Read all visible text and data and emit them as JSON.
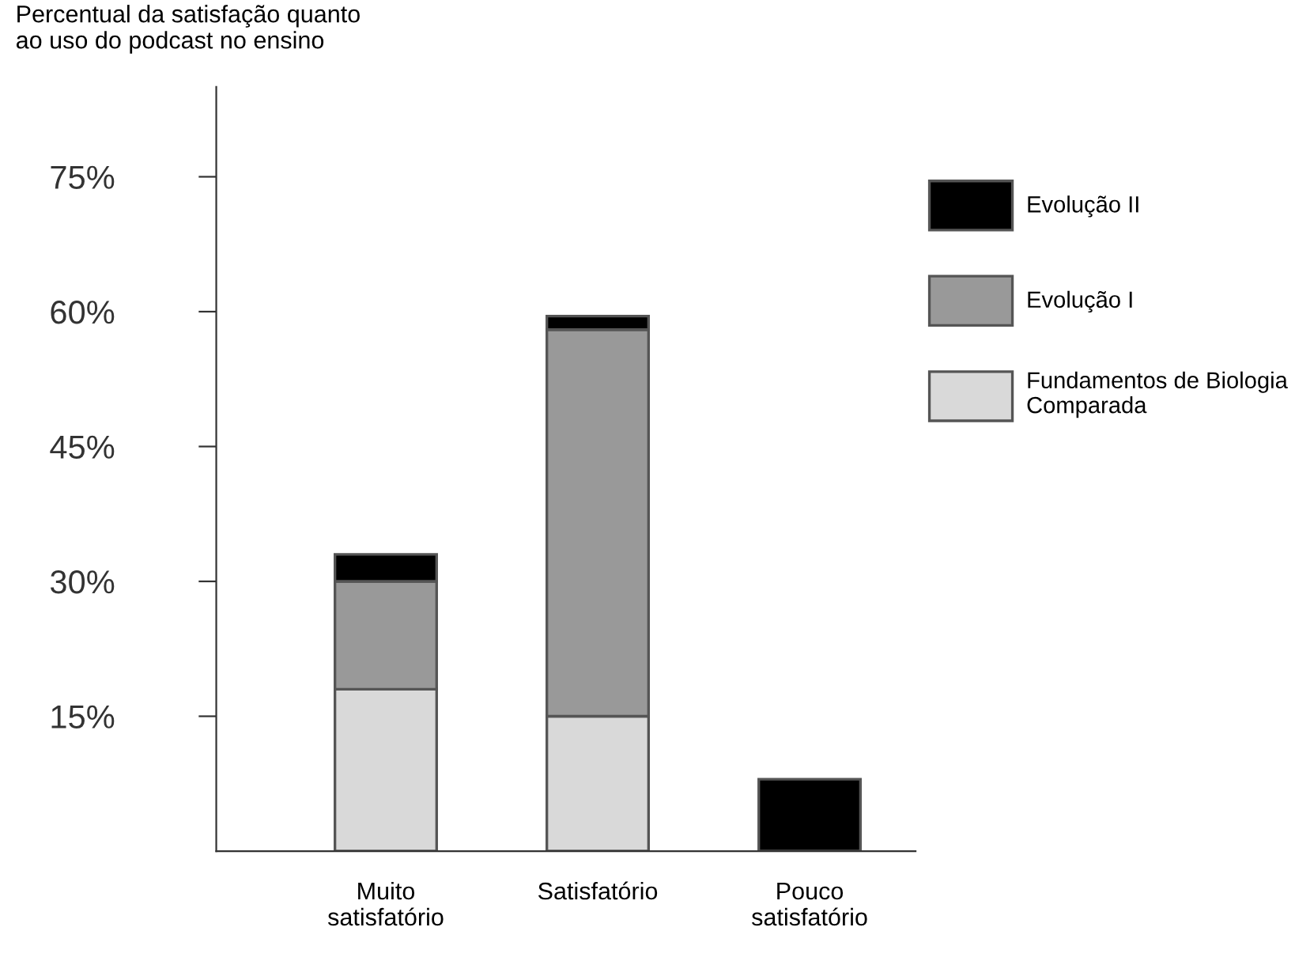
{
  "chart_data": {
    "type": "bar",
    "stacked": true,
    "ylabel": "Percentual da satisfação quanto\nao uso do podcast no ensino",
    "categories": [
      "Muito\nsatisfatório",
      "Satisfatório",
      "Pouco\nsatisfatório"
    ],
    "series": [
      {
        "name": "Fundamentos de Biologia\nComparada",
        "color": "#d9d9d9",
        "values": [
          18,
          15,
          null
        ]
      },
      {
        "name": "Evolução I",
        "color": "#999999",
        "values": [
          12,
          43,
          null
        ]
      },
      {
        "name": "Evolução II",
        "color": "#000000",
        "values": [
          3,
          1.5,
          8
        ]
      }
    ],
    "ylim": [
      0,
      85
    ],
    "yticks": [
      {
        "value": 15,
        "label": "15%"
      },
      {
        "value": 30,
        "label": "30%"
      },
      {
        "value": 45,
        "label": "45%"
      },
      {
        "value": 60,
        "label": "60%"
      },
      {
        "value": 75,
        "label": "75%"
      }
    ],
    "grid": false,
    "legend": "right"
  }
}
